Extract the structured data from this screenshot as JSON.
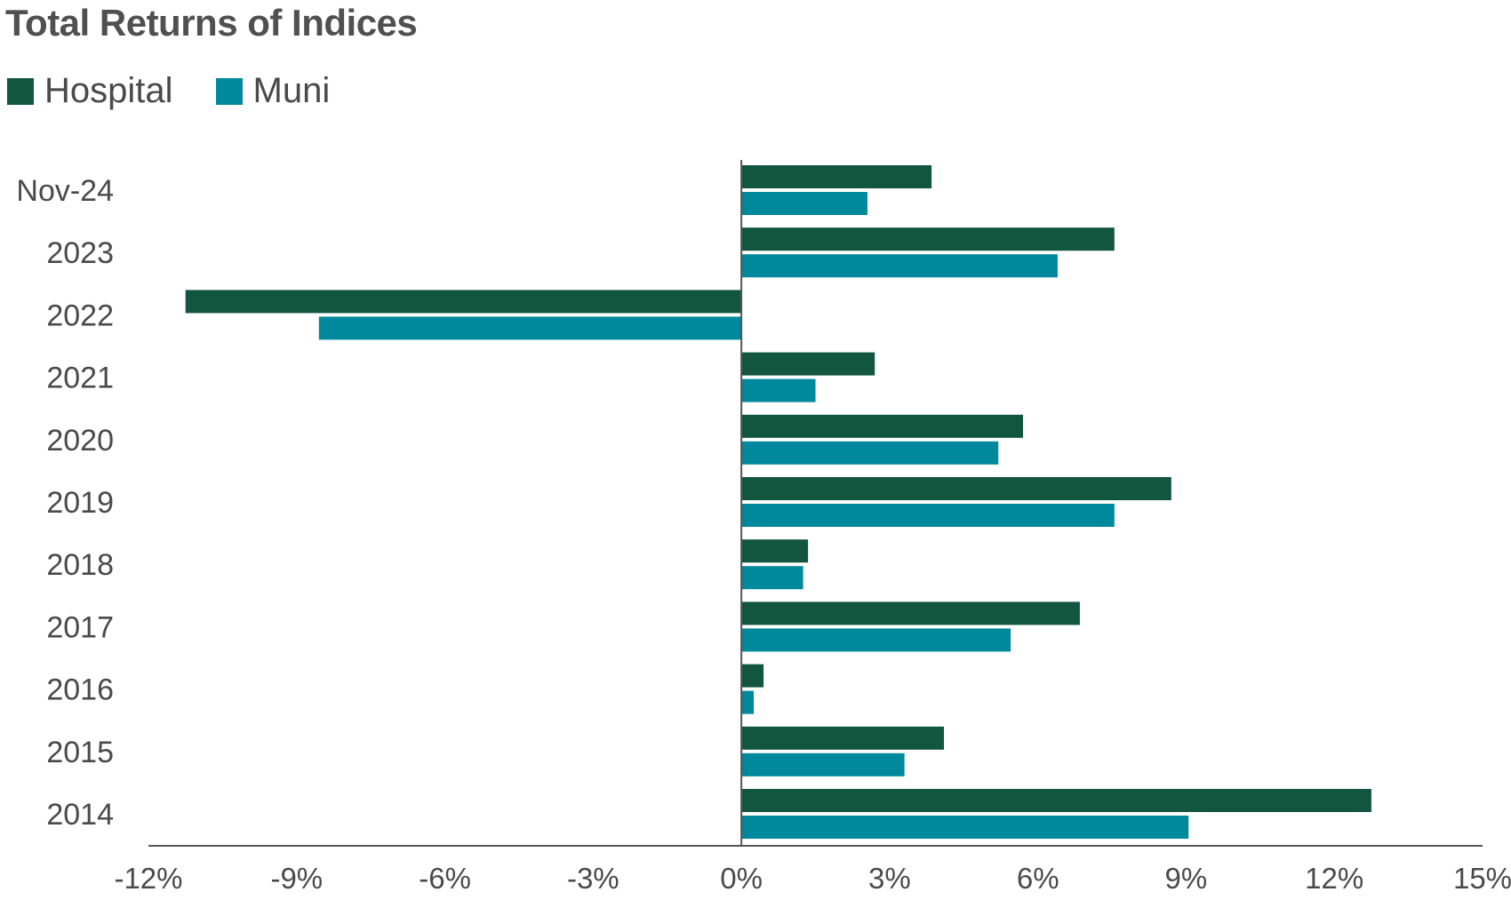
{
  "chart_data": {
    "type": "bar",
    "orientation": "horizontal",
    "title": "Total Returns of Indices",
    "categories": [
      "Nov-24",
      "2023",
      "2022",
      "2021",
      "2020",
      "2019",
      "2018",
      "2017",
      "2016",
      "2015",
      "2014"
    ],
    "series": [
      {
        "name": "Hospital",
        "color": "#12563f",
        "values": [
          3.85,
          7.55,
          -11.25,
          2.7,
          5.7,
          8.7,
          1.35,
          6.85,
          0.45,
          4.1,
          12.75
        ]
      },
      {
        "name": "Muni",
        "color": "#00889c",
        "values": [
          2.55,
          6.4,
          -8.55,
          1.5,
          5.2,
          7.55,
          1.25,
          5.45,
          0.25,
          3.3,
          9.05
        ]
      }
    ],
    "xlim": [
      -12,
      15
    ],
    "xticks": [
      -12,
      -9,
      -6,
      -3,
      0,
      3,
      6,
      9,
      12,
      15
    ],
    "tick_suffix": "%",
    "xlabel": "",
    "ylabel": "",
    "legend_position": "top-left",
    "grid": false
  }
}
